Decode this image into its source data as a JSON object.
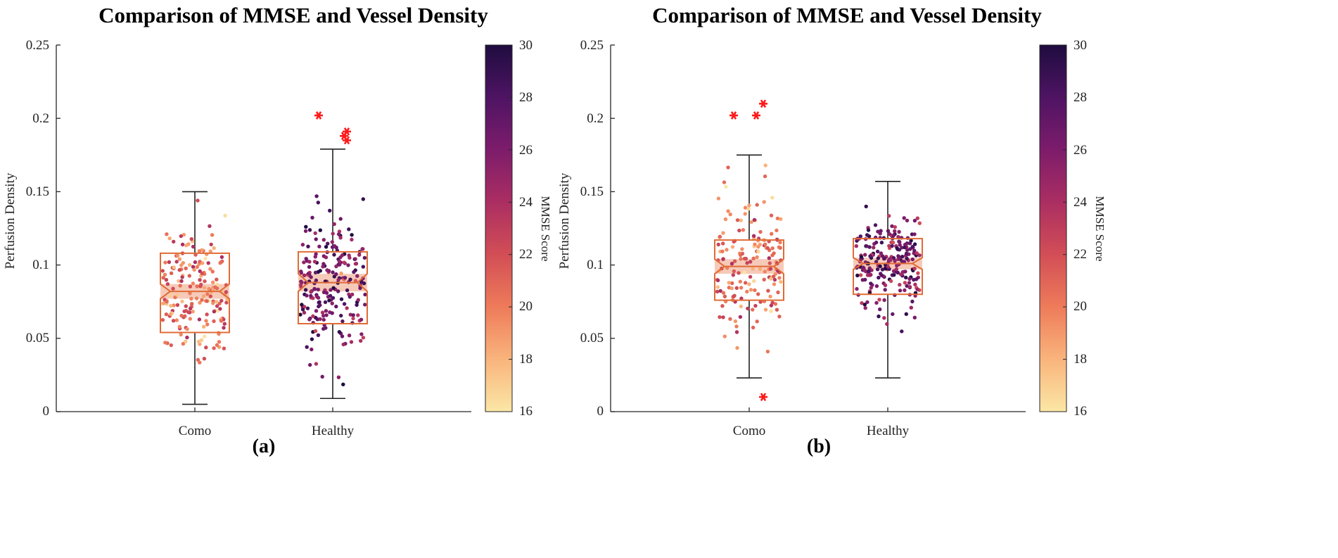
{
  "figure": {
    "colormap": [
      "#fbe7a6",
      "#f9b47c",
      "#ee7b5a",
      "#d24e56",
      "#ab2e62",
      "#7d1c6b",
      "#4e1463",
      "#1f0c3f"
    ],
    "box_color": "#e06b35",
    "notch_fill": "#f4c1ad",
    "outlier_color": "#ff1a1a"
  },
  "chart_data": [
    {
      "type": "box",
      "panel_label": "(a)",
      "title": "Comparison of MMSE and Vessel Density",
      "xlabel": "",
      "ylabel": "Perfusion Density",
      "ylim": [
        0,
        0.25
      ],
      "yticks": [
        0,
        0.05,
        0.1,
        0.15,
        0.2,
        0.25
      ],
      "ytick_labels": [
        "0",
        "0.05",
        "0.1",
        "0.15",
        "0.2",
        "0.25"
      ],
      "categories": [
        "Como",
        "Healthy"
      ],
      "colorbar": {
        "label": "MMSE Score",
        "range": [
          16,
          30
        ],
        "ticks": [
          "16",
          "18",
          "20",
          "22",
          "24",
          "26",
          "28",
          "30"
        ]
      },
      "boxes": [
        {
          "name": "Como",
          "whisker_low": 0.005,
          "q1": 0.054,
          "median": 0.082,
          "q3": 0.108,
          "whisker_high": 0.15,
          "notch_low": 0.077,
          "notch_high": 0.087,
          "outliers": []
        },
        {
          "name": "Healthy",
          "whisker_low": 0.009,
          "q1": 0.06,
          "median": 0.088,
          "q3": 0.109,
          "whisker_high": 0.179,
          "notch_low": 0.082,
          "notch_high": 0.094,
          "outliers": [
            0.202,
            0.191,
            0.188,
            0.185
          ]
        }
      ],
      "scatter": [
        {
          "name": "Como",
          "n": 190,
          "mmse_range": [
            16,
            24
          ],
          "mmse_mean": 20.5,
          "center": 0.082,
          "spread": 0.036
        },
        {
          "name": "Healthy",
          "n": 220,
          "mmse_range": [
            18,
            30
          ],
          "mmse_mean": 26.5,
          "center": 0.088,
          "spread": 0.036
        }
      ]
    },
    {
      "type": "box",
      "panel_label": "(b)",
      "title": "Comparison of MMSE and Vessel Density",
      "xlabel": "",
      "ylabel": "Perfusion Density",
      "ylim": [
        0,
        0.25
      ],
      "yticks": [
        0,
        0.05,
        0.1,
        0.15,
        0.2,
        0.25
      ],
      "ytick_labels": [
        "0",
        "0.05",
        "0.1",
        "0.15",
        "0.2",
        "0.25"
      ],
      "categories": [
        "Como",
        "Healthy"
      ],
      "colorbar": {
        "label": "MMSE Score",
        "range": [
          16,
          30
        ],
        "ticks": [
          "16",
          "18",
          "20",
          "22",
          "24",
          "26",
          "28",
          "30"
        ]
      },
      "boxes": [
        {
          "name": "Como",
          "whisker_low": 0.023,
          "q1": 0.076,
          "median": 0.099,
          "q3": 0.117,
          "whisker_high": 0.175,
          "notch_low": 0.094,
          "notch_high": 0.104,
          "outliers": [
            0.21,
            0.202,
            0.202,
            0.01
          ]
        },
        {
          "name": "Healthy",
          "whisker_low": 0.023,
          "q1": 0.08,
          "median": 0.101,
          "q3": 0.118,
          "whisker_high": 0.157,
          "notch_low": 0.097,
          "notch_high": 0.105,
          "outliers": []
        }
      ],
      "scatter": [
        {
          "name": "Como",
          "n": 170,
          "mmse_range": [
            16,
            24
          ],
          "mmse_mean": 20.5,
          "center": 0.099,
          "spread": 0.035
        },
        {
          "name": "Healthy",
          "n": 230,
          "mmse_range": [
            18,
            30
          ],
          "mmse_mean": 26.5,
          "center": 0.101,
          "spread": 0.027
        }
      ]
    }
  ]
}
